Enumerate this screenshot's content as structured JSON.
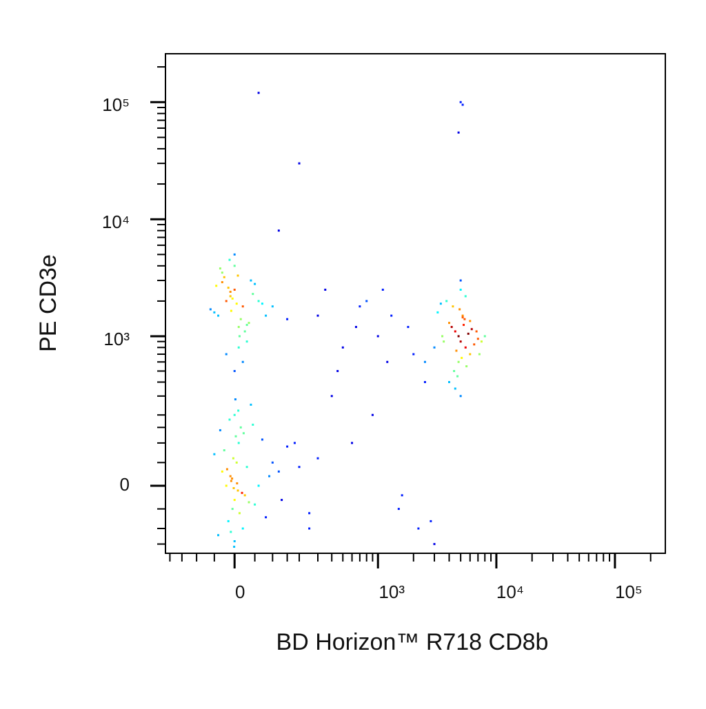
{
  "chart_data": {
    "type": "scatter",
    "x_label": "BD Horizon™ R718 CD8b",
    "y_label": "PE CD3e",
    "xscale": "biexponential",
    "yscale": "biexponential",
    "xlim": [
      -221,
      266000
    ],
    "ylim": [
      -186,
      259000
    ],
    "xticks": [
      0,
      {
        "value": 1000,
        "label": "10³"
      },
      {
        "value": 10000,
        "label": "10⁴"
      },
      {
        "value": 100000,
        "label": "10⁵"
      }
    ],
    "yticks": [
      0,
      {
        "value": 1000,
        "label": "10³"
      },
      {
        "value": 10000,
        "label": "10⁴"
      },
      {
        "value": 100000,
        "label": "10⁵"
      }
    ],
    "xminorticks": [
      -200,
      -150,
      -100,
      -50,
      50,
      100,
      150,
      200,
      300,
      400,
      500,
      600,
      700,
      800,
      900,
      2000,
      3000,
      4000,
      5000,
      6000,
      7000,
      8000,
      9000,
      20000,
      30000,
      40000,
      50000,
      60000,
      70000,
      80000,
      90000,
      200000
    ],
    "yminorticks": [
      -150,
      -100,
      -50,
      50,
      100,
      150,
      200,
      300,
      400,
      500,
      600,
      700,
      800,
      900,
      2000,
      3000,
      4000,
      5000,
      6000,
      7000,
      8000,
      9000,
      20000,
      30000,
      40000,
      50000,
      60000,
      70000,
      80000,
      90000,
      200000
    ],
    "x": [
      -20,
      -10,
      0,
      5,
      -5,
      10,
      -15,
      15,
      -30,
      20,
      0,
      -8,
      8,
      -25,
      25,
      3,
      -3,
      12,
      -12,
      30,
      -40,
      40,
      50,
      -50,
      60,
      70,
      80,
      100,
      120,
      150,
      -2,
      6,
      -6,
      18,
      -18,
      35,
      -35,
      0,
      45,
      90,
      200,
      250,
      180,
      300,
      130,
      2,
      -1,
      9,
      -9,
      22,
      -20,
      0,
      20,
      -40,
      40,
      -10,
      10,
      -30,
      30,
      0,
      -50,
      50,
      5,
      -5,
      15,
      -15,
      25,
      -25,
      60,
      -60,
      0,
      10,
      -10,
      35,
      -35,
      70,
      80,
      -20,
      20,
      0,
      45,
      -45,
      12,
      -12,
      30,
      -30,
      8,
      -8,
      100,
      150,
      5000,
      4500,
      5500,
      4000,
      6000,
      3500,
      7000,
      5200,
      4800,
      4200,
      6500,
      3800,
      5800,
      4600,
      5400,
      3200,
      7500,
      5000,
      4400,
      6200,
      8000,
      3000,
      5100,
      4900,
      5300,
      4700,
      6800,
      3600,
      5600,
      4300,
      5000,
      4000,
      6000,
      5500,
      4500,
      3400,
      7200,
      5000,
      4800,
      5200,
      300,
      500,
      800,
      1200,
      1800,
      2500,
      400,
      600,
      1000,
      1500,
      2000,
      250,
      350,
      700,
      900,
      1300,
      2200,
      450,
      650,
      1100,
      5000,
      5200,
      4800,
      120,
      60,
      200,
      1600,
      2800,
      3000,
      2500
    ],
    "values": [
      0,
      20,
      -30,
      50,
      -50,
      100,
      -80,
      150,
      30,
      -100,
      200,
      10,
      -10,
      80,
      -20,
      120,
      60,
      -60,
      180,
      40,
      -120,
      250,
      -40,
      70,
      0,
      110,
      -70,
      50,
      30,
      90,
      -5,
      5,
      15,
      -15,
      35,
      -35,
      140,
      -140,
      160,
      20,
      40,
      -60,
      100,
      60,
      -30,
      280,
      -160,
      220,
      -110,
      130,
      2000,
      2500,
      1800,
      1500,
      3000,
      2200,
      1200,
      3500,
      900,
      4000,
      1600,
      2800,
      1900,
      2100,
      1400,
      2600,
      1100,
      3200,
      2000,
      1700,
      5000,
      800,
      2400,
      1300,
      3800,
      1900,
      1500,
      700,
      600,
      500,
      2300,
      2700,
      1000,
      4500,
      1250,
      2900,
      3300,
      1650,
      1800,
      1400,
      900,
      1100,
      800,
      1300,
      700,
      1000,
      950,
      1500,
      600,
      1200,
      850,
      2000,
      1050,
      750,
      1400,
      1600,
      900,
      2500,
      500,
      1150,
      1000,
      800,
      650,
      1700,
      1250,
      450,
      1100,
      900,
      550,
      1800,
      3000,
      400,
      1350,
      2200,
      350,
      1900,
      700,
      300,
      1000,
      1450,
      1500,
      800,
      2000,
      600,
      1200,
      400,
      300,
      100,
      1000,
      -50,
      700,
      -100,
      2500,
      1800,
      200,
      1500,
      -100,
      500,
      1200,
      2500,
      100000,
      95000,
      55000,
      8000,
      120000,
      30000,
      -20,
      -80,
      -150,
      600
    ]
  }
}
